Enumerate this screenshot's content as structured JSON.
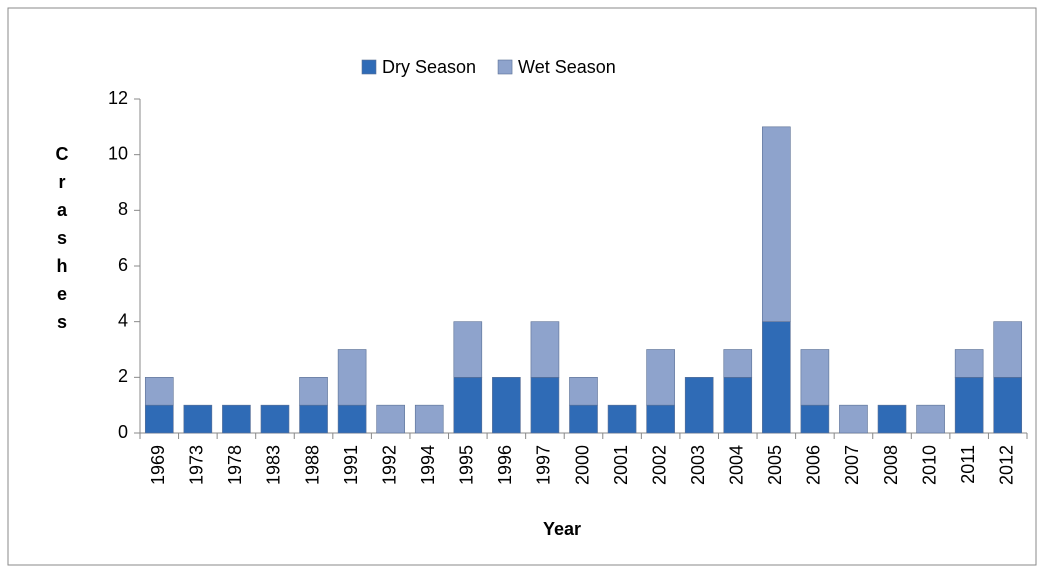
{
  "chart_data": {
    "type": "stacked_bar",
    "categories": [
      "1969",
      "1973",
      "1978",
      "1983",
      "1988",
      "1991",
      "1992",
      "1994",
      "1995",
      "1996",
      "1997",
      "2000",
      "2001",
      "2002",
      "2003",
      "2004",
      "2005",
      "2006",
      "2007",
      "2008",
      "2010",
      "2011",
      "2012"
    ],
    "series": [
      {
        "name": "Dry Season",
        "color": "#2f6bb6",
        "values": [
          1,
          1,
          1,
          1,
          1,
          1,
          0,
          0,
          2,
          2,
          2,
          1,
          1,
          1,
          2,
          2,
          4,
          1,
          0,
          1,
          0,
          2,
          2
        ]
      },
      {
        "name": "Wet Season",
        "color": "#8ea3cc",
        "values": [
          1,
          0,
          0,
          0,
          1,
          2,
          1,
          1,
          2,
          0,
          2,
          1,
          0,
          2,
          0,
          1,
          7,
          2,
          1,
          0,
          1,
          1,
          2
        ]
      }
    ],
    "ylim": [
      0,
      12
    ],
    "yticks": [
      0,
      2,
      4,
      6,
      8,
      10,
      12
    ],
    "x_label": "Year",
    "y_label": "Crashes",
    "legend": "top"
  }
}
